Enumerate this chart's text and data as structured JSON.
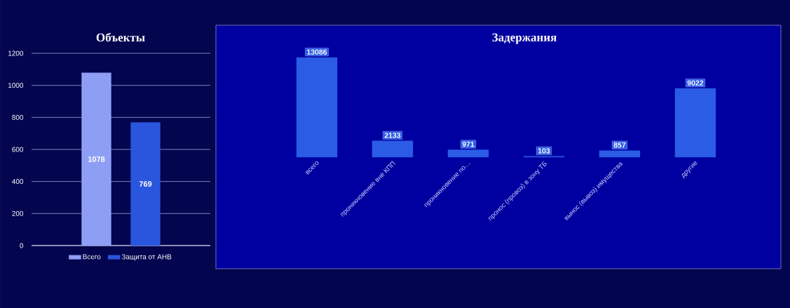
{
  "chart_data": [
    {
      "type": "bar",
      "title": "Объекты",
      "categories": [
        null
      ],
      "series": [
        {
          "name": "Всего",
          "color": "#8f9ef5",
          "values": [
            1078
          ]
        },
        {
          "name": "Защита от АНВ",
          "color": "#2a55dd",
          "values": [
            769
          ]
        }
      ],
      "ylim": [
        0,
        1200
      ],
      "yticks": [
        0,
        200,
        400,
        600,
        800,
        1000,
        1200
      ],
      "grid": "y",
      "legend": "bottom",
      "data_labels": true,
      "tick_labels": "y"
    },
    {
      "type": "bar",
      "title": "Задержания",
      "categories": [
        "всего",
        "проникновение вне КПП",
        "проникновение по…",
        "пронос (провоз) в зону ТБ",
        "вынос (вывоз) имущества",
        "другие"
      ],
      "values": [
        13086,
        2133,
        971,
        103,
        857,
        9022
      ],
      "color": "#2b5ce6",
      "data_labels": true,
      "tick_labels": "x"
    }
  ]
}
